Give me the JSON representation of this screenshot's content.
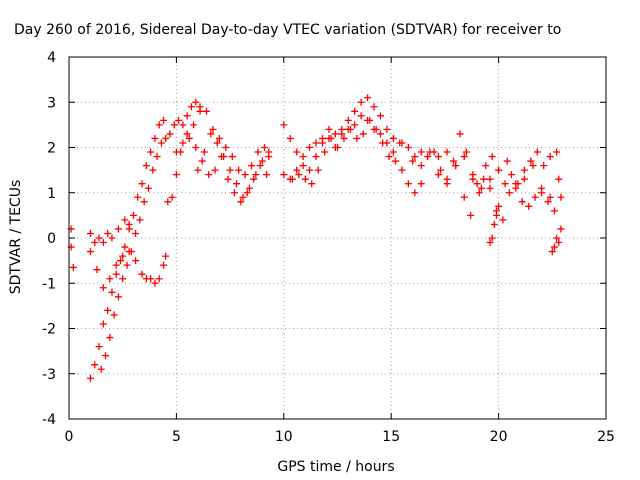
{
  "chart_data": {
    "type": "scatter",
    "title": "Day 260 of 2016, Sidereal Day-to-day VTEC variation (SDTVAR) for receiver to",
    "xlabel": "GPS time / hours",
    "ylabel": "SDTVAR / TECUs",
    "xlim": [
      0,
      25
    ],
    "ylim": [
      -4,
      4
    ],
    "xticks": [
      0,
      5,
      10,
      15,
      20,
      25
    ],
    "yticks": [
      -4,
      -3,
      -2,
      -1,
      0,
      1,
      2,
      3,
      4
    ],
    "grid": true,
    "marker": "+",
    "color": "#ff0000",
    "series": [
      {
        "x": [
          0.1,
          0.1,
          0.2
        ],
        "y": [
          0.2,
          -0.2,
          -0.65
        ]
      },
      {
        "x": [
          1.0,
          1.2,
          1.4,
          1.6,
          1.8,
          2.0,
          2.2,
          2.4,
          2.6,
          2.8,
          3.0,
          3.2,
          3.4,
          3.6,
          3.8,
          4.0,
          4.2,
          4.4
        ],
        "y": [
          -3.1,
          -2.8,
          -2.4,
          -1.9,
          -1.6,
          -1.2,
          -0.8,
          -0.5,
          -0.2,
          0.2,
          0.5,
          0.9,
          1.2,
          1.6,
          1.9,
          2.2,
          2.5,
          2.6
        ]
      },
      {
        "x": [
          1.5,
          1.7,
          1.9,
          2.1,
          2.3,
          2.5,
          2.7,
          2.9,
          3.1,
          3.3,
          3.5,
          3.7,
          3.9,
          4.1,
          4.3,
          4.5,
          4.7,
          4.9,
          5.1,
          5.3,
          5.5,
          5.7,
          5.9,
          6.1
        ],
        "y": [
          -2.9,
          -2.6,
          -2.2,
          -1.7,
          -1.3,
          -0.9,
          -0.6,
          -0.3,
          0.1,
          0.4,
          0.8,
          1.1,
          1.5,
          1.8,
          2.1,
          2.2,
          2.3,
          2.5,
          2.6,
          2.5,
          2.7,
          2.9,
          3.0,
          2.8
        ]
      },
      {
        "x": [
          1.0,
          1.3,
          1.6,
          1.9,
          2.2,
          2.5,
          2.8,
          3.1,
          3.4,
          3.6,
          3.8,
          4.0,
          4.2,
          4.4,
          4.5
        ],
        "y": [
          -0.3,
          -0.7,
          -1.1,
          -0.9,
          -0.6,
          -0.4,
          -0.3,
          -0.5,
          -0.8,
          -0.9,
          -0.9,
          -1.0,
          -0.9,
          -0.6,
          -0.4
        ]
      },
      {
        "x": [
          1.0,
          1.2,
          1.4,
          1.6,
          1.8,
          2.0,
          2.3,
          2.6,
          2.8
        ],
        "y": [
          0.1,
          -0.1,
          0.0,
          -0.1,
          0.1,
          0.0,
          0.2,
          0.4,
          0.3
        ]
      },
      {
        "x": [
          4.6,
          4.8,
          5.0,
          5.2,
          5.5,
          5.8,
          6.1,
          6.4,
          6.7,
          7.0,
          7.3,
          7.6,
          7.9,
          8.2,
          8.5,
          8.8,
          9.1,
          9.3
        ],
        "y": [
          0.8,
          0.9,
          1.4,
          1.9,
          2.3,
          2.5,
          2.9,
          2.8,
          2.4,
          2.2,
          2.0,
          1.8,
          1.5,
          1.4,
          1.6,
          1.9,
          2.0,
          1.8
        ]
      },
      {
        "x": [
          5.0,
          5.3,
          5.6,
          5.9,
          6.2,
          6.5,
          6.8,
          7.1,
          7.4,
          7.7,
          8.0,
          8.3,
          8.6,
          8.9,
          9.2
        ],
        "y": [
          1.9,
          2.1,
          2.2,
          2.0,
          1.7,
          1.4,
          1.5,
          1.8,
          1.3,
          1.0,
          0.8,
          1.0,
          1.3,
          1.6,
          1.4
        ]
      },
      {
        "x": [
          6.0,
          6.3,
          6.6,
          6.9,
          7.2,
          7.5,
          7.8,
          8.1,
          8.4,
          8.7,
          9.0,
          9.3
        ],
        "y": [
          1.5,
          1.9,
          2.3,
          2.1,
          1.8,
          1.5,
          1.2,
          0.9,
          1.1,
          1.4,
          1.7,
          1.9
        ]
      },
      {
        "x": [
          10.0,
          10.3,
          10.6,
          10.9,
          11.2,
          11.5,
          11.8,
          12.1,
          12.4,
          12.7,
          13.0,
          13.3,
          13.6,
          13.9,
          14.2,
          14.5,
          14.8,
          15.1,
          15.4
        ],
        "y": [
          1.4,
          1.3,
          1.5,
          1.8,
          2.0,
          2.1,
          2.2,
          2.4,
          2.3,
          2.4,
          2.6,
          2.8,
          3.0,
          3.1,
          2.9,
          2.7,
          2.4,
          2.2,
          2.1
        ]
      },
      {
        "x": [
          10.0,
          10.3,
          10.6,
          10.9,
          11.2,
          11.5,
          11.8,
          12.1,
          12.4,
          12.7,
          13.0,
          13.3,
          13.6,
          13.9,
          14.2,
          14.5,
          14.8,
          15.1
        ],
        "y": [
          2.5,
          2.2,
          1.9,
          1.6,
          1.5,
          1.8,
          2.1,
          2.2,
          2.0,
          2.3,
          2.4,
          2.5,
          2.7,
          2.6,
          2.4,
          2.3,
          2.1,
          1.9
        ]
      },
      {
        "x": [
          10.4,
          10.7,
          11.0,
          11.3,
          11.6,
          11.9,
          12.2,
          12.5,
          12.8,
          13.1,
          13.4,
          13.7,
          14.0,
          14.3,
          14.6,
          14.9,
          15.2,
          15.5,
          15.8,
          16.1,
          16.4
        ],
        "y": [
          1.3,
          1.4,
          1.3,
          1.2,
          1.5,
          1.9,
          2.2,
          2.0,
          2.2,
          2.4,
          2.2,
          2.3,
          2.6,
          2.4,
          2.1,
          1.8,
          1.7,
          1.5,
          1.2,
          1.0,
          1.2
        ]
      },
      {
        "x": [
          15.5,
          15.8,
          16.1,
          16.4,
          16.7,
          17.0,
          17.3,
          17.6,
          17.9,
          18.2,
          18.5,
          18.8,
          19.1,
          19.4,
          19.7,
          20.0,
          20.3,
          20.6,
          20.9,
          21.2,
          21.5,
          21.8,
          22.1,
          22.4,
          22.7
        ],
        "y": [
          2.1,
          2.0,
          1.8,
          1.9,
          1.8,
          1.9,
          1.5,
          1.3,
          1.7,
          2.3,
          1.9,
          1.3,
          1.0,
          1.6,
          1.8,
          1.5,
          1.2,
          1.4,
          1.2,
          1.5,
          1.7,
          1.9,
          1.6,
          1.8,
          1.9
        ]
      },
      {
        "x": [
          16.0,
          16.4,
          16.8,
          17.2,
          17.6,
          18.0,
          18.4,
          18.8,
          19.2,
          19.6,
          20.0,
          20.4,
          20.8,
          21.2,
          21.6,
          22.0,
          22.4,
          22.8
        ],
        "y": [
          1.7,
          1.6,
          1.9,
          1.4,
          1.2,
          1.6,
          1.8,
          1.4,
          1.1,
          1.3,
          1.5,
          1.7,
          1.1,
          1.3,
          1.6,
          1.0,
          0.9,
          1.3
        ]
      },
      {
        "x": [
          17.2,
          17.6,
          18.0,
          18.4,
          18.7,
          19.0,
          19.3,
          19.6,
          19.9,
          20.2,
          20.5,
          20.8,
          21.1,
          21.4,
          21.7,
          22.0,
          22.3,
          22.6,
          22.9
        ],
        "y": [
          1.8,
          1.9,
          1.6,
          0.9,
          0.5,
          1.2,
          1.3,
          1.1,
          0.6,
          0.4,
          1.0,
          1.2,
          0.8,
          0.7,
          0.9,
          1.1,
          0.8,
          0.6,
          0.9
        ]
      },
      {
        "x": [
          19.6,
          19.7,
          19.8,
          19.9,
          20.0
        ],
        "y": [
          -0.1,
          0.0,
          0.3,
          0.5,
          0.7
        ]
      },
      {
        "x": [
          22.5,
          22.6,
          22.7,
          22.8,
          22.9
        ],
        "y": [
          -0.3,
          -0.2,
          0.0,
          -0.1,
          0.2
        ]
      }
    ]
  }
}
